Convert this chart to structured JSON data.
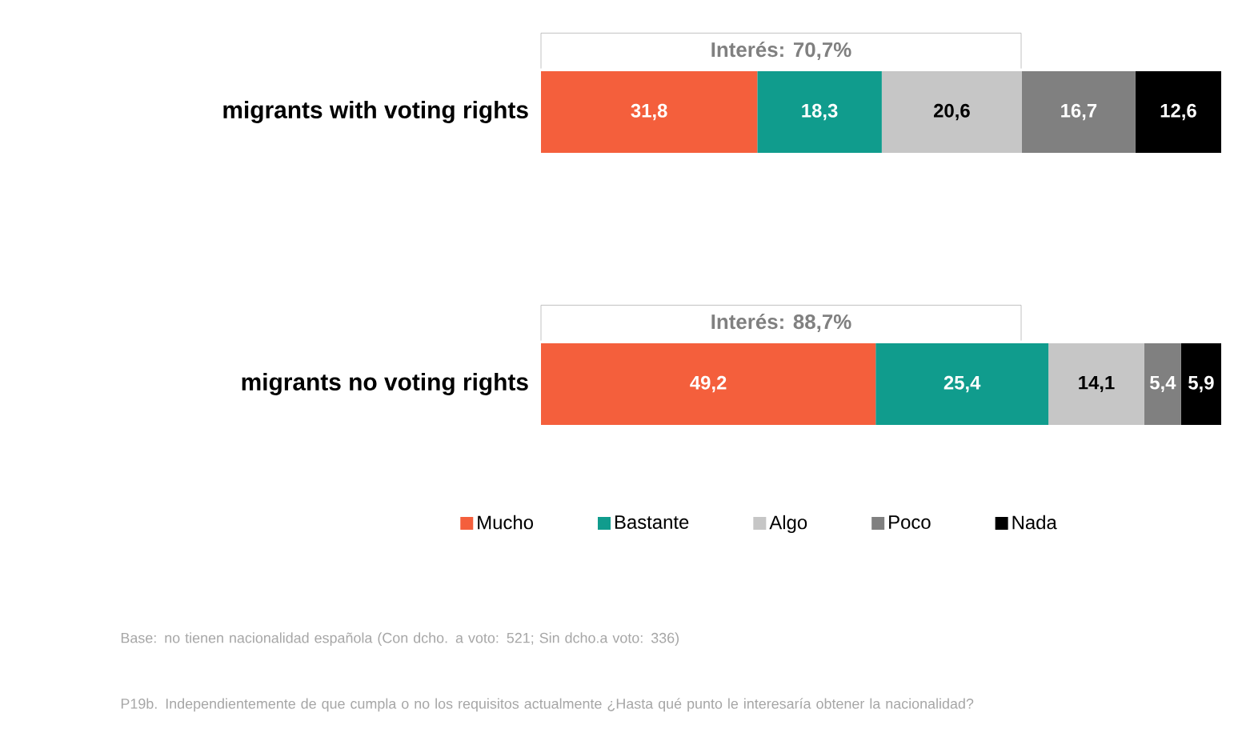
{
  "chart_data": {
    "type": "bar",
    "orientation": "horizontal",
    "stacked": true,
    "categories": [
      "migrants with voting rights",
      "migrants no voting rights"
    ],
    "series": [
      {
        "name": "Mucho",
        "color": "#f45f3c",
        "values": [
          31.8,
          49.2
        ],
        "value_labels": [
          "31,8",
          "49,2"
        ]
      },
      {
        "name": "Bastante",
        "color": "#109c8d",
        "values": [
          18.3,
          25.4
        ],
        "value_labels": [
          "18,3",
          "25,4"
        ]
      },
      {
        "name": "Algo",
        "color": "#c6c6c6",
        "values": [
          20.6,
          14.1
        ],
        "value_labels": [
          "20,6",
          "14,1"
        ]
      },
      {
        "name": "Poco",
        "color": "#808080",
        "values": [
          16.7,
          5.4
        ],
        "value_labels": [
          "16,7",
          "5,4"
        ]
      },
      {
        "name": "Nada",
        "color": "#000000",
        "values": [
          12.6,
          5.9
        ],
        "value_labels": [
          "12,6",
          "5,9"
        ]
      }
    ],
    "annotations": [
      "Interés: 70,7%",
      "Interés: 88,7%",
      "Base: no tienen nacionalidad española (Con dcho. a voto: 521; Sin dcho.a voto: 336)",
      "P19b. Independientemente de que cumpla o no los requisitos actualmente ¿Hasta qué punto le interesaría obtener la nacionalidad?"
    ],
    "legend": "bottom",
    "tick_labels": "y"
  }
}
